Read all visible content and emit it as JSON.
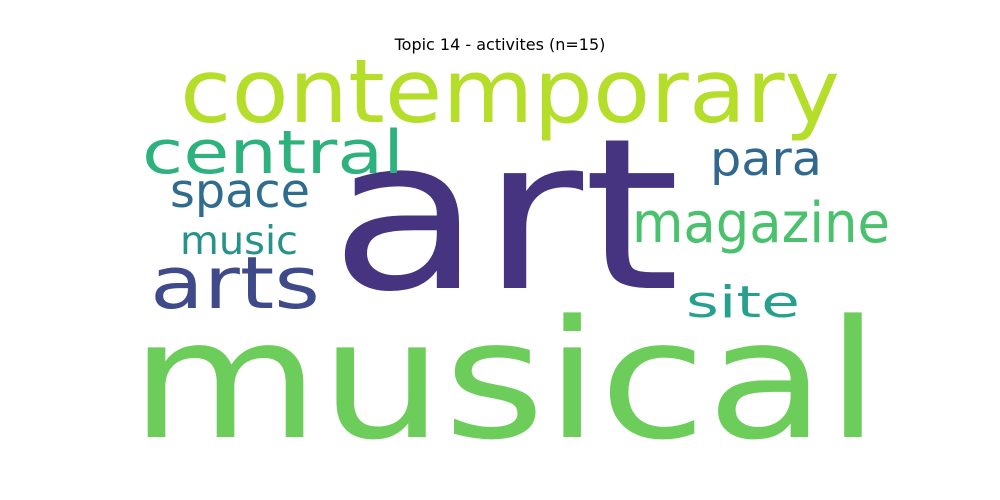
{
  "title": "Topic 14 - activites (n=15)",
  "words": [
    {
      "text": "musical",
      "color": "#6ccd5a"
    },
    {
      "text": "art",
      "color": "#463480"
    },
    {
      "text": "contemporary",
      "color": "#b5de2b"
    },
    {
      "text": "central",
      "color": "#2db27d"
    },
    {
      "text": "arts",
      "color": "#3e4a89"
    },
    {
      "text": "magazine",
      "color": "#4ac16d"
    },
    {
      "text": "space",
      "color": "#2f6c8e"
    },
    {
      "text": "para",
      "color": "#31688e"
    },
    {
      "text": "site",
      "color": "#25a18e"
    },
    {
      "text": "music",
      "color": "#26938b"
    }
  ]
}
